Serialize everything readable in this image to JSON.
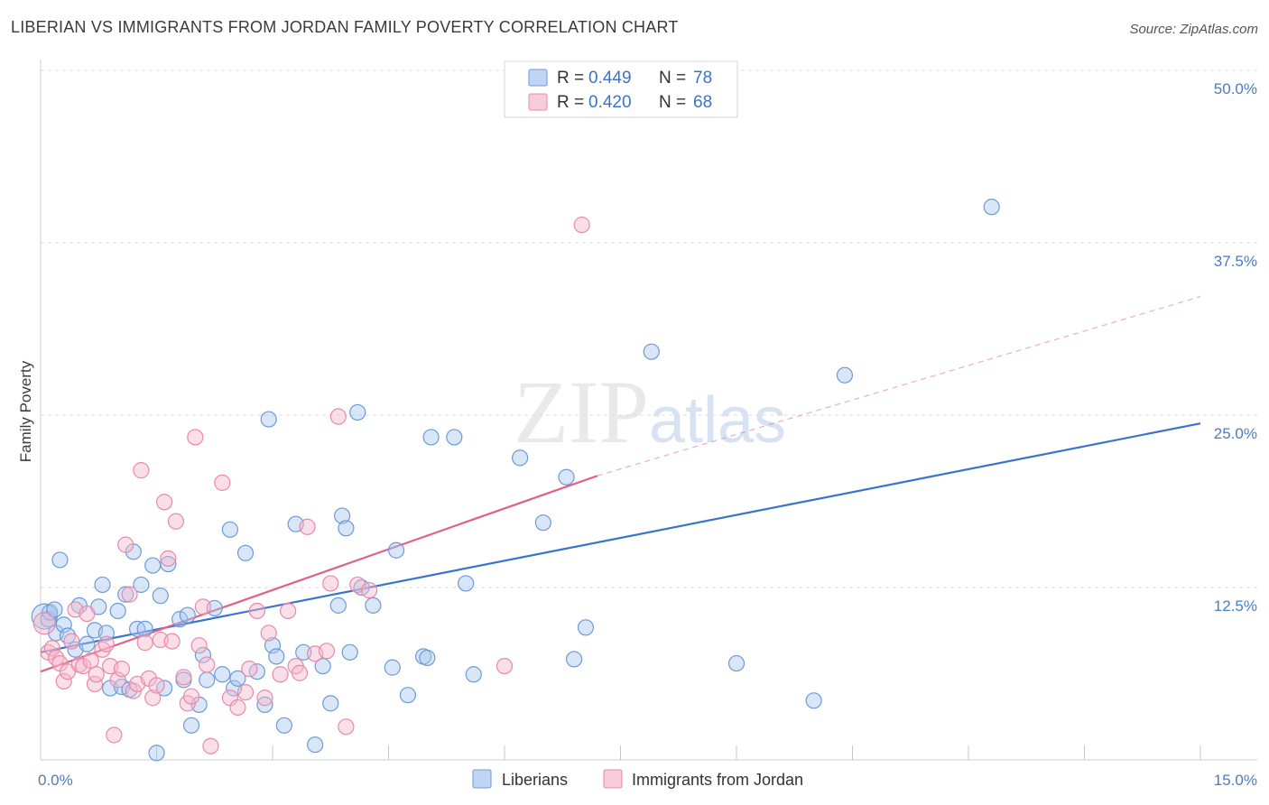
{
  "title": "LIBERIAN VS IMMIGRANTS FROM JORDAN FAMILY POVERTY CORRELATION CHART",
  "source": "Source: ZipAtlas.com",
  "watermark": "ZIPatlas",
  "legend": {
    "r_label": "R =",
    "n_label": "N =",
    "series": [
      {
        "r": "0.449",
        "n": "78",
        "fill": "#a9c7ef",
        "stroke": "#6c9ad9"
      },
      {
        "r": "0.420",
        "n": "68",
        "fill": "#f6b9cc",
        "stroke": "#e88aa8"
      }
    ]
  },
  "bottom_legend": [
    "Liberians",
    "Immigrants from Jordan"
  ],
  "chart_data": {
    "type": "scatter",
    "xlabel": "",
    "ylabel": "Family Poverty",
    "xlim": [
      0,
      15
    ],
    "ylim": [
      0,
      50
    ],
    "x_tick_labels": [
      {
        "value": 0,
        "label": "0.0%"
      },
      {
        "value": 15,
        "label": "15.0%"
      }
    ],
    "y_tick_labels": [
      {
        "value": 12.5,
        "label": "12.5%"
      },
      {
        "value": 25.0,
        "label": "25.0%"
      },
      {
        "value": 37.5,
        "label": "37.5%"
      },
      {
        "value": 50.0,
        "label": "50.0%"
      }
    ],
    "grid": true,
    "series": [
      {
        "name": "Liberians",
        "color": "#6c9ad9",
        "fill": "#a9c7ef",
        "trend": {
          "x": [
            0,
            15
          ],
          "y": [
            7.8,
            24.4
          ],
          "style": "solid",
          "color": "#3a74c8"
        },
        "points": [
          {
            "x": 0.05,
            "y": 10.4,
            "r": 14
          },
          {
            "x": 0.1,
            "y": 10.2
          },
          {
            "x": 0.12,
            "y": 10.7
          },
          {
            "x": 0.18,
            "y": 10.9
          },
          {
            "x": 0.2,
            "y": 9.2
          },
          {
            "x": 0.25,
            "y": 14.5
          },
          {
            "x": 0.3,
            "y": 9.8
          },
          {
            "x": 0.35,
            "y": 9.0
          },
          {
            "x": 0.45,
            "y": 8.0
          },
          {
            "x": 0.5,
            "y": 11.2
          },
          {
            "x": 0.6,
            "y": 8.4
          },
          {
            "x": 0.7,
            "y": 9.4
          },
          {
            "x": 0.75,
            "y": 11.1
          },
          {
            "x": 0.8,
            "y": 12.7
          },
          {
            "x": 0.85,
            "y": 9.2
          },
          {
            "x": 0.9,
            "y": 5.2
          },
          {
            "x": 1.0,
            "y": 10.8
          },
          {
            "x": 1.05,
            "y": 5.3
          },
          {
            "x": 1.1,
            "y": 12.0
          },
          {
            "x": 1.15,
            "y": 5.1
          },
          {
            "x": 1.2,
            "y": 15.1
          },
          {
            "x": 1.25,
            "y": 9.5
          },
          {
            "x": 1.3,
            "y": 12.7
          },
          {
            "x": 1.35,
            "y": 9.5
          },
          {
            "x": 1.45,
            "y": 14.1
          },
          {
            "x": 1.5,
            "y": 0.5
          },
          {
            "x": 1.55,
            "y": 11.9
          },
          {
            "x": 1.6,
            "y": 5.2
          },
          {
            "x": 1.65,
            "y": 14.2
          },
          {
            "x": 1.8,
            "y": 10.2
          },
          {
            "x": 1.85,
            "y": 5.8
          },
          {
            "x": 1.9,
            "y": 10.5
          },
          {
            "x": 1.95,
            "y": 2.5
          },
          {
            "x": 2.05,
            "y": 4.0
          },
          {
            "x": 2.1,
            "y": 7.6
          },
          {
            "x": 2.15,
            "y": 5.8
          },
          {
            "x": 2.25,
            "y": 11.0
          },
          {
            "x": 2.35,
            "y": 6.2
          },
          {
            "x": 2.45,
            "y": 16.7
          },
          {
            "x": 2.5,
            "y": 5.2
          },
          {
            "x": 2.55,
            "y": 5.9
          },
          {
            "x": 2.65,
            "y": 15.0
          },
          {
            "x": 2.8,
            "y": 6.4
          },
          {
            "x": 2.9,
            "y": 4.0
          },
          {
            "x": 2.95,
            "y": 24.7
          },
          {
            "x": 3.0,
            "y": 8.3
          },
          {
            "x": 3.05,
            "y": 7.5
          },
          {
            "x": 3.15,
            "y": 2.5
          },
          {
            "x": 3.3,
            "y": 17.1
          },
          {
            "x": 3.4,
            "y": 7.8
          },
          {
            "x": 3.55,
            "y": 1.1
          },
          {
            "x": 3.65,
            "y": 6.8
          },
          {
            "x": 3.75,
            "y": 4.1
          },
          {
            "x": 3.85,
            "y": 11.2
          },
          {
            "x": 3.9,
            "y": 17.7
          },
          {
            "x": 3.95,
            "y": 16.8
          },
          {
            "x": 4.0,
            "y": 7.8
          },
          {
            "x": 4.1,
            "y": 25.2
          },
          {
            "x": 4.15,
            "y": 12.5
          },
          {
            "x": 4.3,
            "y": 11.2
          },
          {
            "x": 4.55,
            "y": 6.7
          },
          {
            "x": 4.6,
            "y": 15.2
          },
          {
            "x": 4.75,
            "y": 4.7
          },
          {
            "x": 4.95,
            "y": 7.5
          },
          {
            "x": 5.0,
            "y": 7.4
          },
          {
            "x": 5.05,
            "y": 23.4
          },
          {
            "x": 5.35,
            "y": 23.4
          },
          {
            "x": 5.5,
            "y": 12.8
          },
          {
            "x": 5.6,
            "y": 6.2
          },
          {
            "x": 6.2,
            "y": 21.9
          },
          {
            "x": 6.5,
            "y": 17.2
          },
          {
            "x": 6.8,
            "y": 20.5
          },
          {
            "x": 6.9,
            "y": 7.3
          },
          {
            "x": 7.05,
            "y": 9.6
          },
          {
            "x": 7.9,
            "y": 29.6
          },
          {
            "x": 9.0,
            "y": 7.0
          },
          {
            "x": 10.0,
            "y": 4.3
          },
          {
            "x": 10.4,
            "y": 27.9
          },
          {
            "x": 12.3,
            "y": 40.1
          }
        ]
      },
      {
        "name": "Immigrants from Jordan",
        "color": "#e88aa8",
        "fill": "#f6b9cc",
        "trend": {
          "x": [
            0,
            7.2
          ],
          "y": [
            6.4,
            20.6
          ],
          "style": "solid",
          "color": "#e0608a",
          "extension": {
            "x": [
              7.2,
              15
            ],
            "y": [
              20.6,
              33.6
            ],
            "style": "dashed"
          }
        },
        "points": [
          {
            "x": 0.05,
            "y": 9.9,
            "r": 12
          },
          {
            "x": 0.1,
            "y": 7.8
          },
          {
            "x": 0.15,
            "y": 8.1
          },
          {
            "x": 0.2,
            "y": 7.4
          },
          {
            "x": 0.25,
            "y": 7.0
          },
          {
            "x": 0.3,
            "y": 5.7
          },
          {
            "x": 0.35,
            "y": 6.4
          },
          {
            "x": 0.4,
            "y": 8.6
          },
          {
            "x": 0.45,
            "y": 10.9
          },
          {
            "x": 0.5,
            "y": 6.9
          },
          {
            "x": 0.55,
            "y": 6.8
          },
          {
            "x": 0.6,
            "y": 10.6
          },
          {
            "x": 0.65,
            "y": 7.2
          },
          {
            "x": 0.7,
            "y": 5.5
          },
          {
            "x": 0.72,
            "y": 6.2
          },
          {
            "x": 0.8,
            "y": 8.0
          },
          {
            "x": 0.85,
            "y": 8.4
          },
          {
            "x": 0.9,
            "y": 6.8
          },
          {
            "x": 0.95,
            "y": 1.8
          },
          {
            "x": 1.0,
            "y": 5.8
          },
          {
            "x": 1.05,
            "y": 6.6
          },
          {
            "x": 1.1,
            "y": 15.6
          },
          {
            "x": 1.15,
            "y": 12.0
          },
          {
            "x": 1.2,
            "y": 5.0
          },
          {
            "x": 1.25,
            "y": 5.5
          },
          {
            "x": 1.3,
            "y": 21.0
          },
          {
            "x": 1.35,
            "y": 8.5
          },
          {
            "x": 1.4,
            "y": 5.9
          },
          {
            "x": 1.45,
            "y": 4.5
          },
          {
            "x": 1.5,
            "y": 5.4
          },
          {
            "x": 1.55,
            "y": 8.7
          },
          {
            "x": 1.6,
            "y": 18.7
          },
          {
            "x": 1.65,
            "y": 14.6
          },
          {
            "x": 1.7,
            "y": 8.6
          },
          {
            "x": 1.75,
            "y": 17.3
          },
          {
            "x": 1.85,
            "y": 6.0
          },
          {
            "x": 1.9,
            "y": 4.1
          },
          {
            "x": 1.95,
            "y": 4.6
          },
          {
            "x": 2.0,
            "y": 23.4
          },
          {
            "x": 2.05,
            "y": 8.3
          },
          {
            "x": 2.1,
            "y": 11.1
          },
          {
            "x": 2.15,
            "y": 6.9
          },
          {
            "x": 2.2,
            "y": 1.0
          },
          {
            "x": 2.35,
            "y": 20.1
          },
          {
            "x": 2.45,
            "y": 4.5
          },
          {
            "x": 2.55,
            "y": 3.8
          },
          {
            "x": 2.65,
            "y": 4.9
          },
          {
            "x": 2.7,
            "y": 6.6
          },
          {
            "x": 2.8,
            "y": 10.8
          },
          {
            "x": 2.9,
            "y": 4.5
          },
          {
            "x": 2.95,
            "y": 9.2
          },
          {
            "x": 3.1,
            "y": 6.2
          },
          {
            "x": 3.2,
            "y": 10.8
          },
          {
            "x": 3.3,
            "y": 6.8
          },
          {
            "x": 3.35,
            "y": 6.3
          },
          {
            "x": 3.45,
            "y": 16.9
          },
          {
            "x": 3.55,
            "y": 7.7
          },
          {
            "x": 3.7,
            "y": 7.9
          },
          {
            "x": 3.75,
            "y": 12.8
          },
          {
            "x": 3.85,
            "y": 24.9
          },
          {
            "x": 3.95,
            "y": 2.4
          },
          {
            "x": 4.1,
            "y": 12.7
          },
          {
            "x": 4.25,
            "y": 12.3
          },
          {
            "x": 6.0,
            "y": 6.8
          },
          {
            "x": 7.0,
            "y": 38.8
          }
        ]
      }
    ]
  }
}
